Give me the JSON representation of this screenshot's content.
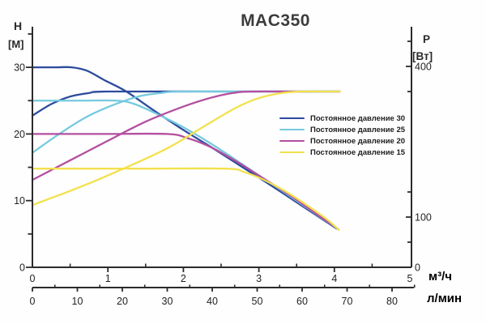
{
  "title": "MAC350",
  "axes": {
    "left_label": "H",
    "left_unit": "[M]",
    "right_label": "P",
    "right_unit": "[Вт]",
    "x_unit_primary": "м³/ч",
    "x_unit_secondary": "л/мин"
  },
  "chart_data": {
    "type": "line",
    "title": "MAC350",
    "x_primary": {
      "unit": "м³/ч",
      "range": [
        0,
        5
      ],
      "major": [
        0,
        1,
        2,
        3,
        4,
        5
      ],
      "minor": [
        0.5,
        1.5,
        2.5,
        3.5,
        4.5
      ]
    },
    "x_secondary": {
      "unit": "л/мин",
      "range": [
        0,
        85
      ],
      "major": [
        0,
        10,
        20,
        30,
        40,
        50,
        60,
        70,
        80
      ],
      "minor": [
        5,
        15,
        25,
        35,
        45,
        55,
        65,
        75,
        85
      ]
    },
    "y_left": {
      "label": "H [M]",
      "range": [
        0,
        35
      ],
      "ticks": [
        {
          "v": 35,
          "label": ""
        },
        {
          "v": 30,
          "label": "30"
        },
        {
          "v": 25,
          "label": ""
        },
        {
          "v": 20,
          "label": "20"
        },
        {
          "v": 15,
          "label": ""
        },
        {
          "v": 10,
          "label": "10"
        },
        {
          "v": 5,
          "label": ""
        },
        {
          "v": 0,
          "label": "0"
        }
      ]
    },
    "y_right": {
      "label": "P [Вт]",
      "range": [
        0,
        460
      ],
      "ticks": [
        {
          "v": 450,
          "label": ""
        },
        {
          "v": 400,
          "label": "400"
        },
        {
          "v": 350,
          "label": ""
        },
        {
          "v": 150,
          "label": ""
        },
        {
          "v": 100,
          "label": "100"
        },
        {
          "v": 50,
          "label": ""
        },
        {
          "v": 0,
          "label": "0"
        }
      ]
    },
    "series": [
      {
        "id": "head-30",
        "legend_label": "Постоянное давление 30",
        "color": "#2c4b9d",
        "axis": "left",
        "role": "head",
        "points": [
          [
            0,
            30
          ],
          [
            0.3,
            30
          ],
          [
            0.52,
            30
          ],
          [
            0.72,
            29.5
          ],
          [
            0.95,
            28.1
          ],
          [
            1.24,
            26.4
          ],
          [
            1.6,
            23.6
          ],
          [
            2.0,
            20.6
          ],
          [
            2.4,
            17.8
          ],
          [
            2.8,
            14.9
          ],
          [
            3.2,
            12.0
          ],
          [
            3.6,
            9.0
          ],
          [
            4.03,
            5.8
          ]
        ]
      },
      {
        "id": "power-30",
        "color": "#2c4b9d",
        "axis": "right",
        "role": "power",
        "points": [
          [
            0,
            302
          ],
          [
            0.25,
            325
          ],
          [
            0.5,
            340
          ],
          [
            0.75,
            347
          ],
          [
            1.0,
            350
          ],
          [
            2.5,
            350
          ],
          [
            4.07,
            350
          ]
        ]
      },
      {
        "id": "head-25",
        "legend_label": "Постоянное давление 25",
        "color": "#76cadf",
        "axis": "left",
        "role": "head",
        "points": [
          [
            0,
            25
          ],
          [
            0.6,
            25
          ],
          [
            1.12,
            25
          ],
          [
            1.35,
            24.5
          ],
          [
            1.65,
            23.0
          ],
          [
            2.0,
            21.0
          ],
          [
            2.4,
            18.3
          ],
          [
            2.8,
            15.3
          ],
          [
            3.2,
            12.3
          ],
          [
            3.6,
            9.2
          ],
          [
            4.04,
            5.8
          ]
        ]
      },
      {
        "id": "power-25",
        "color": "#76cadf",
        "axis": "right",
        "role": "power",
        "points": [
          [
            0,
            228
          ],
          [
            0.35,
            265
          ],
          [
            0.7,
            298
          ],
          [
            1.05,
            322
          ],
          [
            1.4,
            340
          ],
          [
            1.7,
            347
          ],
          [
            1.95,
            350
          ],
          [
            3.0,
            350
          ],
          [
            4.07,
            350
          ]
        ]
      },
      {
        "id": "head-20",
        "legend_label": "Постоянное давление 20",
        "color": "#b34fa0",
        "axis": "left",
        "role": "head",
        "points": [
          [
            0,
            20
          ],
          [
            0.9,
            20
          ],
          [
            1.78,
            20
          ],
          [
            2.05,
            19.4
          ],
          [
            2.35,
            18.1
          ],
          [
            2.7,
            15.9
          ],
          [
            3.05,
            13.4
          ],
          [
            3.4,
            10.9
          ],
          [
            3.75,
            8.1
          ],
          [
            4.05,
            5.75
          ]
        ]
      },
      {
        "id": "power-20",
        "color": "#b34fa0",
        "axis": "right",
        "role": "power",
        "points": [
          [
            0,
            174
          ],
          [
            0.5,
            213
          ],
          [
            1.0,
            252
          ],
          [
            1.5,
            290
          ],
          [
            2.0,
            320
          ],
          [
            2.35,
            337
          ],
          [
            2.65,
            347
          ],
          [
            2.9,
            350
          ],
          [
            3.5,
            350
          ],
          [
            4.07,
            350
          ]
        ]
      },
      {
        "id": "head-15",
        "legend_label": "Постоянное давление 15",
        "color": "#f2e14d",
        "axis": "left",
        "role": "head",
        "points": [
          [
            0,
            14.8
          ],
          [
            1.3,
            14.8
          ],
          [
            2.55,
            14.8
          ],
          [
            2.8,
            14.3
          ],
          [
            3.05,
            13.2
          ],
          [
            3.35,
            11.4
          ],
          [
            3.65,
            9.2
          ],
          [
            3.9,
            7.2
          ],
          [
            4.06,
            5.6
          ]
        ]
      },
      {
        "id": "power-15",
        "color": "#f2e14d",
        "axis": "right",
        "role": "power",
        "points": [
          [
            0,
            124
          ],
          [
            0.6,
            158
          ],
          [
            1.2,
            196
          ],
          [
            1.8,
            238
          ],
          [
            2.3,
            283
          ],
          [
            2.7,
            318
          ],
          [
            3.0,
            337
          ],
          [
            3.3,
            347
          ],
          [
            3.55,
            350
          ],
          [
            3.8,
            350
          ],
          [
            4.07,
            350
          ]
        ]
      }
    ],
    "legend_position": "center-right",
    "grid": false
  },
  "legend": {
    "items": [
      {
        "label": "Постоянное давление 30",
        "color": "#2c4b9d"
      },
      {
        "label": "Постоянное давление 25",
        "color": "#76cadf"
      },
      {
        "label": "Постоянное давление 20",
        "color": "#b34fa0"
      },
      {
        "label": "Постоянное давление 15",
        "color": "#f2e14d"
      }
    ]
  },
  "style": {
    "axis_color": "#2b2b2b",
    "tick_label_color": "#232323",
    "curve_width": 2.3
  }
}
